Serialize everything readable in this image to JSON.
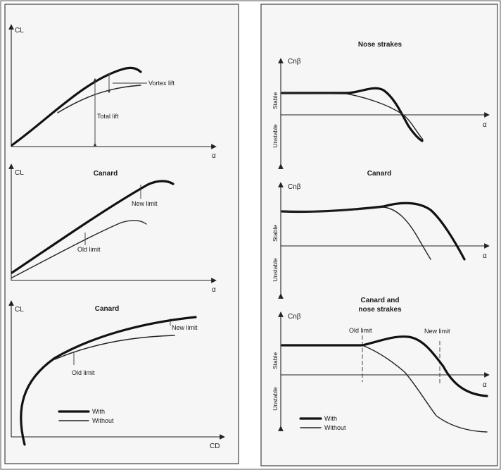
{
  "left": {
    "p1": {
      "y_label": "CL",
      "x_label": "α",
      "vortex": "Vortex lift",
      "total": "Total lift"
    },
    "p2": {
      "y_label": "CL",
      "x_label": "α",
      "title": "Canard",
      "new_limit": "New limit",
      "old_limit": "Old limit"
    },
    "p3": {
      "y_label": "CL",
      "x_label": "CD",
      "title": "Canard",
      "new_limit": "New limit",
      "old_limit": "Old limit",
      "legend": {
        "with": "With",
        "without": "Without"
      }
    }
  },
  "right": {
    "p1": {
      "title": "Nose strakes",
      "y_label": "Cnβ",
      "x_label": "α",
      "stable": "Stable",
      "unstable": "Unstable"
    },
    "p2": {
      "title": "Canard",
      "y_label": "Cnβ",
      "x_label": "α",
      "stable": "Stable",
      "unstable": "Unstable"
    },
    "p3": {
      "title_line1": "Canard and",
      "title_line2": "nose strakes",
      "y_label": "Cnβ",
      "x_label": "α",
      "stable": "Stable",
      "unstable": "Unstable",
      "old_limit": "Old limit",
      "new_limit": "New limit",
      "legend": {
        "with": "With",
        "without": "Without"
      }
    }
  },
  "colors": {
    "ink": "#111111",
    "panel_bg": "#f6f6f6",
    "border": "#444444"
  }
}
